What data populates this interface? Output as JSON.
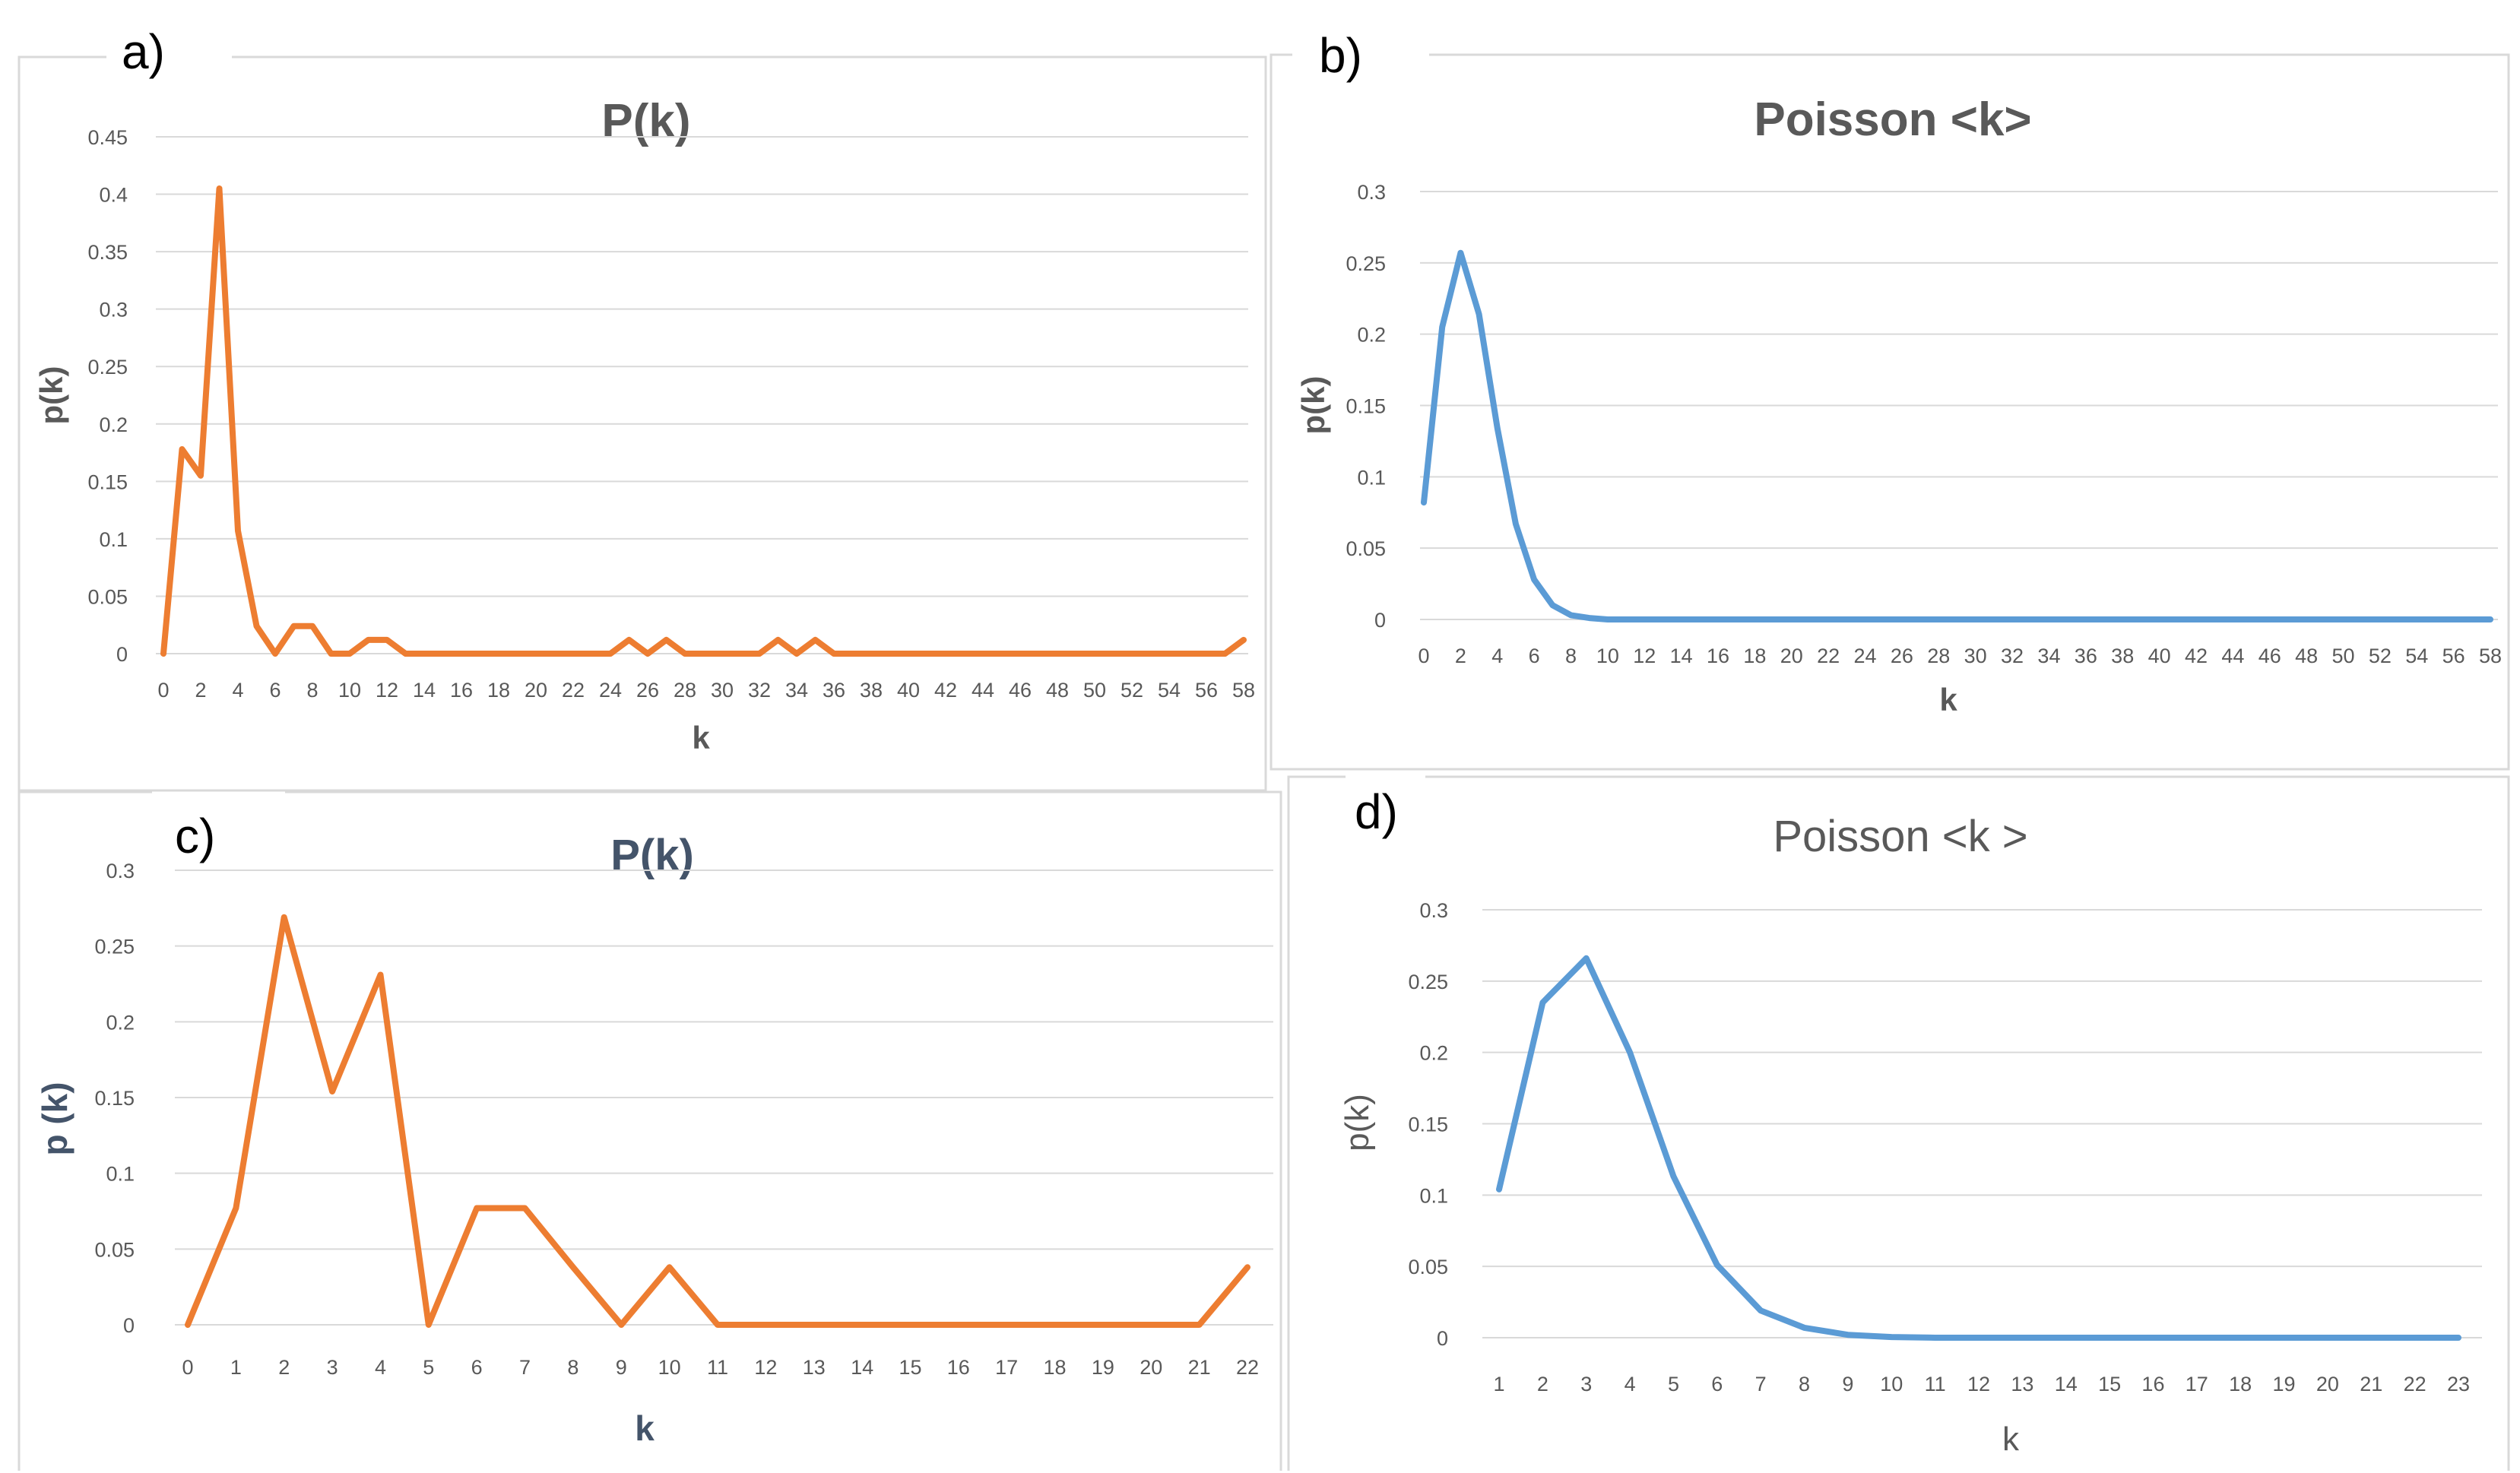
{
  "chart_data": [
    {
      "id": "a",
      "panel_label": "a)",
      "type": "line",
      "title": "P(k)",
      "xlabel": "k",
      "ylabel": "p(k)",
      "ylim": [
        0,
        0.45
      ],
      "yticks": [
        "0",
        "0.05",
        "0.1",
        "0.15",
        "0.2",
        "0.25",
        "0.3",
        "0.35",
        "0.4",
        "0.45"
      ],
      "xticks": [
        "0",
        "2",
        "4",
        "6",
        "8",
        "10",
        "12",
        "14",
        "16",
        "18",
        "20",
        "22",
        "24",
        "26",
        "28",
        "30",
        "32",
        "34",
        "36",
        "38",
        "40",
        "42",
        "44",
        "46",
        "48",
        "50",
        "52",
        "54",
        "56",
        "58"
      ],
      "color": "#ed7d31",
      "series": [
        {
          "name": "P(k)",
          "x": [
            0,
            1,
            2,
            3,
            4,
            5,
            6,
            7,
            8,
            9,
            10,
            11,
            12,
            13,
            14,
            15,
            16,
            17,
            18,
            19,
            20,
            21,
            22,
            23,
            24,
            25,
            26,
            27,
            28,
            29,
            30,
            31,
            32,
            33,
            34,
            35,
            36,
            37,
            38,
            39,
            40,
            41,
            42,
            43,
            44,
            45,
            46,
            47,
            48,
            49,
            50,
            51,
            52,
            53,
            54,
            55,
            56,
            57,
            58
          ],
          "values": [
            0,
            0.178,
            0.155,
            0.405,
            0.107,
            0.024,
            0,
            0.024,
            0.024,
            0,
            0,
            0.012,
            0.012,
            0,
            0,
            0,
            0,
            0,
            0,
            0,
            0,
            0,
            0,
            0,
            0,
            0.012,
            0,
            0.012,
            0,
            0,
            0,
            0,
            0,
            0.012,
            0,
            0.012,
            0,
            0,
            0,
            0,
            0,
            0,
            0,
            0,
            0,
            0,
            0,
            0,
            0,
            0,
            0,
            0,
            0,
            0,
            0,
            0,
            0,
            0,
            0.012
          ]
        }
      ]
    },
    {
      "id": "b",
      "panel_label": "b)",
      "type": "line",
      "title": "Poisson  <k>",
      "xlabel": "k",
      "ylabel": "p(k)",
      "ylim": [
        0,
        0.3
      ],
      "yticks": [
        "0",
        "0.05",
        "0.1",
        "0.15",
        "0.2",
        "0.25",
        "0.3"
      ],
      "xticks": [
        "0",
        "2",
        "4",
        "6",
        "8",
        "10",
        "12",
        "14",
        "16",
        "18",
        "20",
        "22",
        "24",
        "26",
        "28",
        "30",
        "32",
        "34",
        "36",
        "38",
        "40",
        "42",
        "44",
        "46",
        "48",
        "50",
        "52",
        "54",
        "56",
        "58"
      ],
      "color": "#5b9bd5",
      "series": [
        {
          "name": "Poisson",
          "x": [
            0,
            1,
            2,
            3,
            4,
            5,
            6,
            7,
            8,
            9,
            10,
            11,
            12,
            13,
            14,
            15,
            16,
            17,
            18,
            19,
            20,
            21,
            22,
            23,
            24,
            25,
            26,
            27,
            28,
            29,
            30,
            31,
            32,
            33,
            34,
            35,
            36,
            37,
            38,
            39,
            40,
            41,
            42,
            43,
            44,
            45,
            46,
            47,
            48,
            49,
            50,
            51,
            52,
            53,
            54,
            55,
            56,
            57,
            58
          ],
          "values": [
            0.082,
            0.205,
            0.257,
            0.214,
            0.134,
            0.067,
            0.028,
            0.01,
            0.003,
            0.001,
            0,
            0,
            0,
            0,
            0,
            0,
            0,
            0,
            0,
            0,
            0,
            0,
            0,
            0,
            0,
            0,
            0,
            0,
            0,
            0,
            0,
            0,
            0,
            0,
            0,
            0,
            0,
            0,
            0,
            0,
            0,
            0,
            0,
            0,
            0,
            0,
            0,
            0,
            0,
            0,
            0,
            0,
            0,
            0,
            0,
            0,
            0,
            0,
            0
          ]
        }
      ]
    },
    {
      "id": "c",
      "panel_label": "c)",
      "type": "line",
      "title": "P(k)",
      "xlabel": "k",
      "ylabel": "p (k)",
      "ylim": [
        0,
        0.3
      ],
      "yticks": [
        "0",
        "0.05",
        "0.1",
        "0.15",
        "0.2",
        "0.25",
        "0.3"
      ],
      "xticks": [
        "0",
        "1",
        "2",
        "3",
        "4",
        "5",
        "6",
        "7",
        "8",
        "9",
        "10",
        "11",
        "12",
        "13",
        "14",
        "15",
        "16",
        "17",
        "18",
        "19",
        "20",
        "21",
        "22"
      ],
      "color": "#ed7d31",
      "series": [
        {
          "name": "P(k)",
          "x": [
            0,
            1,
            2,
            3,
            4,
            5,
            6,
            7,
            8,
            9,
            10,
            11,
            12,
            13,
            14,
            15,
            16,
            17,
            18,
            19,
            20,
            21,
            22
          ],
          "values": [
            0,
            0.077,
            0.269,
            0.154,
            0.231,
            0,
            0.077,
            0.077,
            0.038,
            0,
            0.038,
            0,
            0,
            0,
            0,
            0,
            0,
            0,
            0,
            0,
            0,
            0,
            0.038
          ]
        }
      ]
    },
    {
      "id": "d",
      "panel_label": "d)",
      "type": "line",
      "title": "Poisson  <k >",
      "xlabel": "k",
      "ylabel": "p(k)",
      "ylim": [
        0,
        0.3
      ],
      "yticks": [
        "0",
        "0.05",
        "0.1",
        "0.15",
        "0.2",
        "0.25",
        "0.3"
      ],
      "xticks": [
        "1",
        "2",
        "3",
        "4",
        "5",
        "6",
        "7",
        "8",
        "9",
        "10",
        "11",
        "12",
        "13",
        "14",
        "15",
        "16",
        "17",
        "18",
        "19",
        "20",
        "21",
        "22",
        "23"
      ],
      "color": "#5b9bd5",
      "series": [
        {
          "name": "Poisson",
          "x": [
            1,
            2,
            3,
            4,
            5,
            6,
            7,
            8,
            9,
            10,
            11,
            12,
            13,
            14,
            15,
            16,
            17,
            18,
            19,
            20,
            21,
            22,
            23
          ],
          "values": [
            0.104,
            0.235,
            0.266,
            0.2,
            0.113,
            0.051,
            0.019,
            0.007,
            0.002,
            0.0005,
            0,
            0,
            0,
            0,
            0,
            0,
            0,
            0,
            0,
            0,
            0,
            0,
            0
          ]
        }
      ]
    }
  ]
}
